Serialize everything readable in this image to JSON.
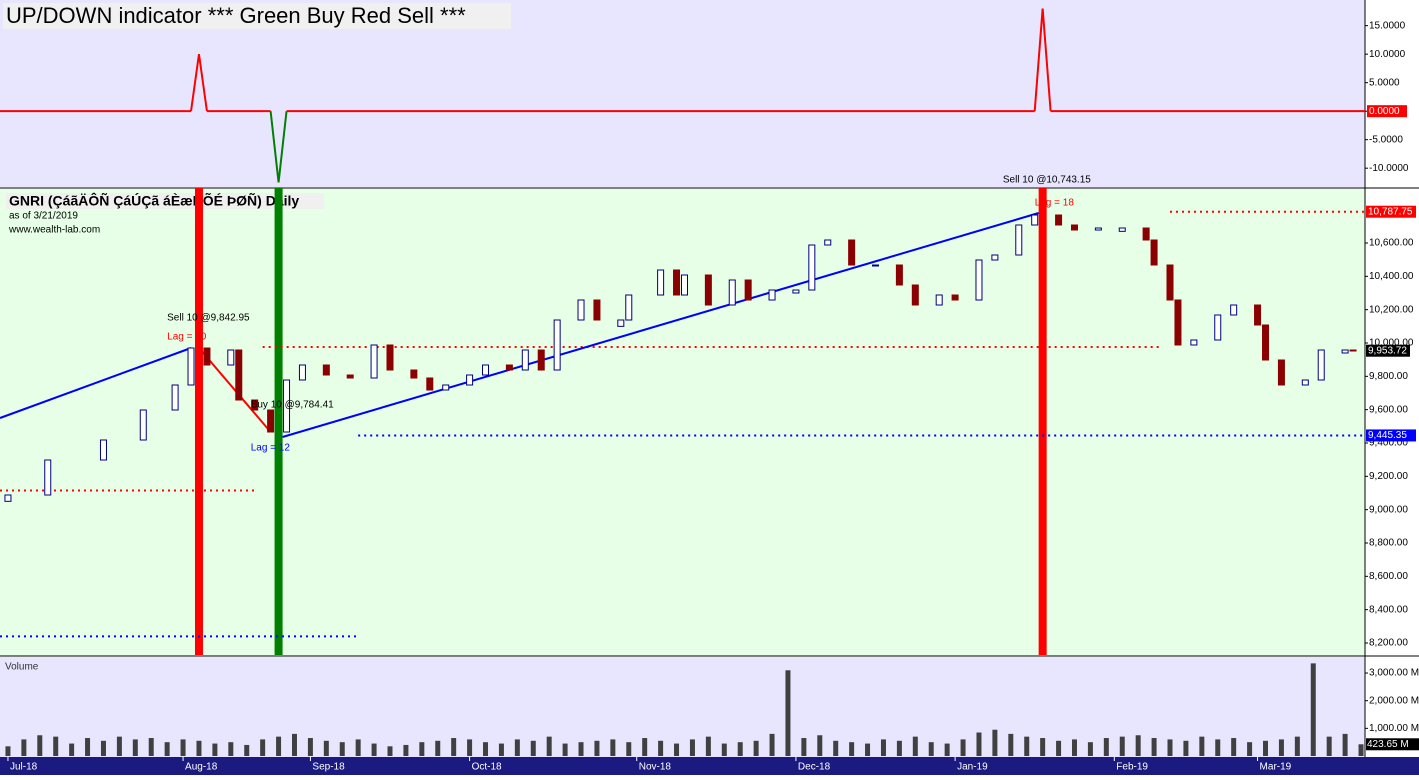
{
  "chart_data": [
    {
      "type": "line",
      "title": "UP/DOWN indicator *** Green Buy Red Sell ***",
      "x": [
        -1,
        23,
        24,
        25,
        33,
        34,
        35,
        129,
        130,
        131,
        170.5
      ],
      "values": [
        0,
        0,
        10,
        0,
        0,
        -12.5,
        0,
        0,
        18,
        0,
        0
      ],
      "color": "#ff0000",
      "negative_color": "#008000",
      "xlim": [
        -1,
        170.5
      ],
      "ylim": [
        -13.3,
        19.5
      ],
      "yticks": [
        {
          "value": 15,
          "label": "15.0000"
        },
        {
          "value": 10,
          "label": "10.0000"
        },
        {
          "value": 5,
          "label": "5.0000"
        },
        {
          "value": 0,
          "label": "0.0000"
        },
        {
          "value": -5,
          "label": "-5.0000"
        },
        {
          "value": -10,
          "label": "-10.0000"
        }
      ]
    },
    {
      "type": "candlestick",
      "title": "GNRI (ÇáãÄÔÑ ÇáÚÇã áÈæÑÕÉ ÞØÑ) Daily",
      "subtitle": "as of 3/21/2019",
      "source": "www.wealth-lab.com",
      "x": [
        0,
        5,
        12,
        17,
        21,
        23,
        25,
        28,
        29,
        31,
        33,
        35,
        37,
        40,
        43,
        46,
        48,
        51,
        53,
        55,
        58,
        60,
        63,
        65,
        67,
        69,
        72,
        74,
        77,
        78,
        82,
        84,
        85,
        88,
        91,
        93,
        96,
        99,
        101,
        103,
        106,
        109,
        112,
        114,
        117,
        119,
        122,
        124,
        127,
        129,
        132,
        134,
        137,
        140,
        143,
        144,
        146,
        147,
        149,
        152,
        154,
        157,
        158,
        160,
        163,
        165,
        168,
        169
      ],
      "open": [
        9050,
        9088,
        9298,
        9418,
        9598,
        9748,
        9970,
        9868,
        9958,
        9658,
        9598,
        9466,
        9778,
        9868,
        9808,
        9790,
        9988,
        9838,
        9790,
        9718,
        9748,
        9808,
        9868,
        9838,
        9958,
        9838,
        10138,
        10258,
        10100,
        10138,
        10288,
        10438,
        10288,
        10408,
        10228,
        10378,
        10258,
        10300,
        10318,
        10588,
        10618,
        10468,
        10468,
        10348,
        10228,
        10288,
        10258,
        10498,
        10528,
        10708,
        10768,
        10708,
        10678,
        10670,
        10690,
        10618,
        10468,
        10258,
        9988,
        10018,
        10168,
        10228,
        10108,
        9898,
        9748,
        9778,
        9940,
        9958
      ],
      "close": [
        9088,
        9298,
        9418,
        9598,
        9748,
        9970,
        9868,
        9958,
        9658,
        9598,
        9466,
        9778,
        9868,
        9808,
        9790,
        9988,
        9838,
        9790,
        9718,
        9748,
        9808,
        9868,
        9838,
        9958,
        9838,
        10138,
        10258,
        10138,
        10138,
        10288,
        10438,
        10288,
        10408,
        10228,
        10378,
        10258,
        10318,
        10318,
        10588,
        10618,
        10468,
        10468,
        10348,
        10228,
        10288,
        10258,
        10498,
        10528,
        10708,
        10768,
        10708,
        10678,
        10690,
        10690,
        10618,
        10468,
        10258,
        9988,
        10018,
        10168,
        10228,
        10108,
        9898,
        9748,
        9778,
        9958,
        9958,
        9953.72
      ],
      "up_color": "#ffffff",
      "down_color": "#8b0000",
      "outline_color": "#000080",
      "xlim": [
        -1,
        170.5
      ],
      "ylim": [
        8128,
        10918
      ],
      "yticks": [
        {
          "value": 8200,
          "label": "8,200.00"
        },
        {
          "value": 8400,
          "label": "8,400.00"
        },
        {
          "value": 8600,
          "label": "8,600.00"
        },
        {
          "value": 8800,
          "label": "8,800.00"
        },
        {
          "value": 9000,
          "label": "9,000.00"
        },
        {
          "value": 9200,
          "label": "9,200.00"
        },
        {
          "value": 9400,
          "label": "9,400.00"
        },
        {
          "value": 9600,
          "label": "9,600.00"
        },
        {
          "value": 9800,
          "label": "9,800.00"
        },
        {
          "value": 10000,
          "label": "10,000.00"
        },
        {
          "value": 10200,
          "label": "10,200.00"
        },
        {
          "value": 10400,
          "label": "10,400.00"
        },
        {
          "value": 10600,
          "label": "10,600.00"
        }
      ],
      "trendlines": [
        {
          "x": [
            -1,
            23
          ],
          "values": [
            9550,
            9970
          ],
          "color": "#0000ff"
        },
        {
          "x": [
            34.5,
            129.5
          ],
          "values": [
            9436,
            10780
          ],
          "color": "#0000ff"
        },
        {
          "x": [
            24,
            33
          ],
          "values": [
            9970,
            9466
          ],
          "color": "#ff0000"
        }
      ],
      "levels": [
        {
          "x": [
            146,
            170.5
          ],
          "value": 10787.75,
          "color": "#ff0000",
          "label": "10,787.75"
        },
        {
          "x": [
            32,
            145
          ],
          "value": 9976,
          "color": "#ff0000"
        },
        {
          "x": [
            -1,
            31
          ],
          "value": 9115,
          "color": "#ff0000"
        },
        {
          "x": [
            44,
            170.5
          ],
          "value": 9445.35,
          "color": "#0000ff",
          "label": "9,445.35"
        },
        {
          "x": [
            -1,
            44
          ],
          "value": 8240,
          "color": "#0000ff"
        }
      ],
      "signals": [
        {
          "x": 24,
          "color": "#ff0000"
        },
        {
          "x": 34,
          "color": "#008000"
        },
        {
          "x": 130,
          "color": "#ff0000"
        }
      ],
      "annotations": [
        {
          "text": "Sell 10 @9,842.95",
          "x": 20,
          "value": 10150,
          "color": "#000000"
        },
        {
          "text": "Lag = 10",
          "x": 20,
          "value": 10036,
          "color": "#ff0000"
        },
        {
          "text": "Buy 10 @9,784.41",
          "x": 30.5,
          "value": 9628,
          "color": "#000000"
        },
        {
          "text": "Lag = 12",
          "x": 30.5,
          "value": 9370,
          "color": "#0000ff"
        },
        {
          "text": "Sell 10 @10,743.15",
          "x": 125,
          "value": 10978,
          "color": "#000000"
        },
        {
          "text": "Lag = 18",
          "x": 129,
          "value": 10840,
          "color": "#ff0000"
        }
      ],
      "last": {
        "value": 9953.72,
        "label": "9,953.72"
      }
    },
    {
      "type": "bar",
      "title": "Volume",
      "x": [
        0,
        2,
        4,
        6,
        8,
        10,
        12,
        14,
        16,
        18,
        20,
        22,
        24,
        26,
        28,
        30,
        32,
        34,
        36,
        38,
        40,
        42,
        44,
        46,
        48,
        50,
        52,
        54,
        56,
        58,
        60,
        62,
        64,
        66,
        68,
        70,
        72,
        74,
        76,
        78,
        80,
        82,
        84,
        86,
        88,
        90,
        92,
        94,
        96,
        98,
        100,
        102,
        104,
        106,
        108,
        110,
        112,
        114,
        116,
        118,
        120,
        122,
        124,
        126,
        128,
        130,
        132,
        134,
        136,
        138,
        140,
        142,
        144,
        146,
        148,
        150,
        152,
        154,
        156,
        158,
        160,
        162,
        164,
        166,
        168,
        170
      ],
      "values": [
        350,
        600,
        750,
        700,
        450,
        650,
        550,
        700,
        600,
        650,
        500,
        600,
        550,
        450,
        500,
        400,
        600,
        700,
        800,
        650,
        550,
        500,
        600,
        450,
        350,
        400,
        500,
        550,
        650,
        600,
        500,
        450,
        600,
        550,
        700,
        450,
        500,
        550,
        600,
        500,
        650,
        550,
        450,
        600,
        700,
        450,
        500,
        550,
        800,
        3100,
        650,
        750,
        550,
        500,
        450,
        600,
        550,
        700,
        500,
        450,
        600,
        850,
        950,
        800,
        700,
        650,
        550,
        600,
        500,
        650,
        700,
        750,
        650,
        600,
        550,
        700,
        600,
        650,
        500,
        550,
        600,
        700,
        3350,
        700,
        800,
        423.65
      ],
      "color": "#404040",
      "xlim": [
        -1,
        170.5
      ],
      "ylim": [
        0,
        3580
      ],
      "yticks": [
        {
          "value": 1000,
          "label": "1,000.00 M"
        },
        {
          "value": 2000,
          "label": "2,000.00 M"
        },
        {
          "value": 3000,
          "label": "3,000.00 M"
        }
      ],
      "xticks": [
        {
          "value": 0,
          "label": "Jul-18"
        },
        {
          "value": 22,
          "label": "Aug-18"
        },
        {
          "value": 38,
          "label": "Sep-18"
        },
        {
          "value": 58,
          "label": "Oct-18"
        },
        {
          "value": 79,
          "label": "Nov-18"
        },
        {
          "value": 99,
          "label": "Dec-18"
        },
        {
          "value": 119,
          "label": "Jan-19"
        },
        {
          "value": 139,
          "label": "Feb-19"
        },
        {
          "value": 157,
          "label": "Mar-19"
        }
      ],
      "last": {
        "value": 423.65,
        "label": "423.65 M"
      }
    }
  ]
}
